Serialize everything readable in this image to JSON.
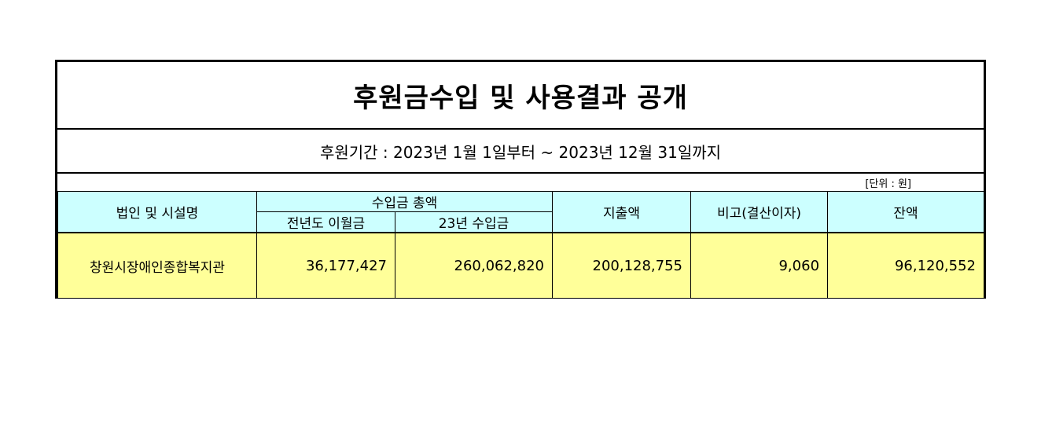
{
  "title": "후원금수입 및 사용결과 공개",
  "period": "후원기간 : 2023년 1월 1일부터 ~ 2023년 12월 31일까지",
  "unit": "[단위 : 원]",
  "headers": {
    "org_name": "법인 및 시설명",
    "income_total": "수입금 총액",
    "carryover": "전년도 이월금",
    "income_23": "23년 수입금",
    "expense": "지출액",
    "remark": "비고(결산이자)",
    "balance": "잔액"
  },
  "rows": [
    {
      "org_name": "창원시장애인종합복지관",
      "carryover": "36,177,427",
      "income_23": "260,062,820",
      "expense": "200,128,755",
      "remark": "9,060",
      "balance": "96,120,552"
    }
  ]
}
